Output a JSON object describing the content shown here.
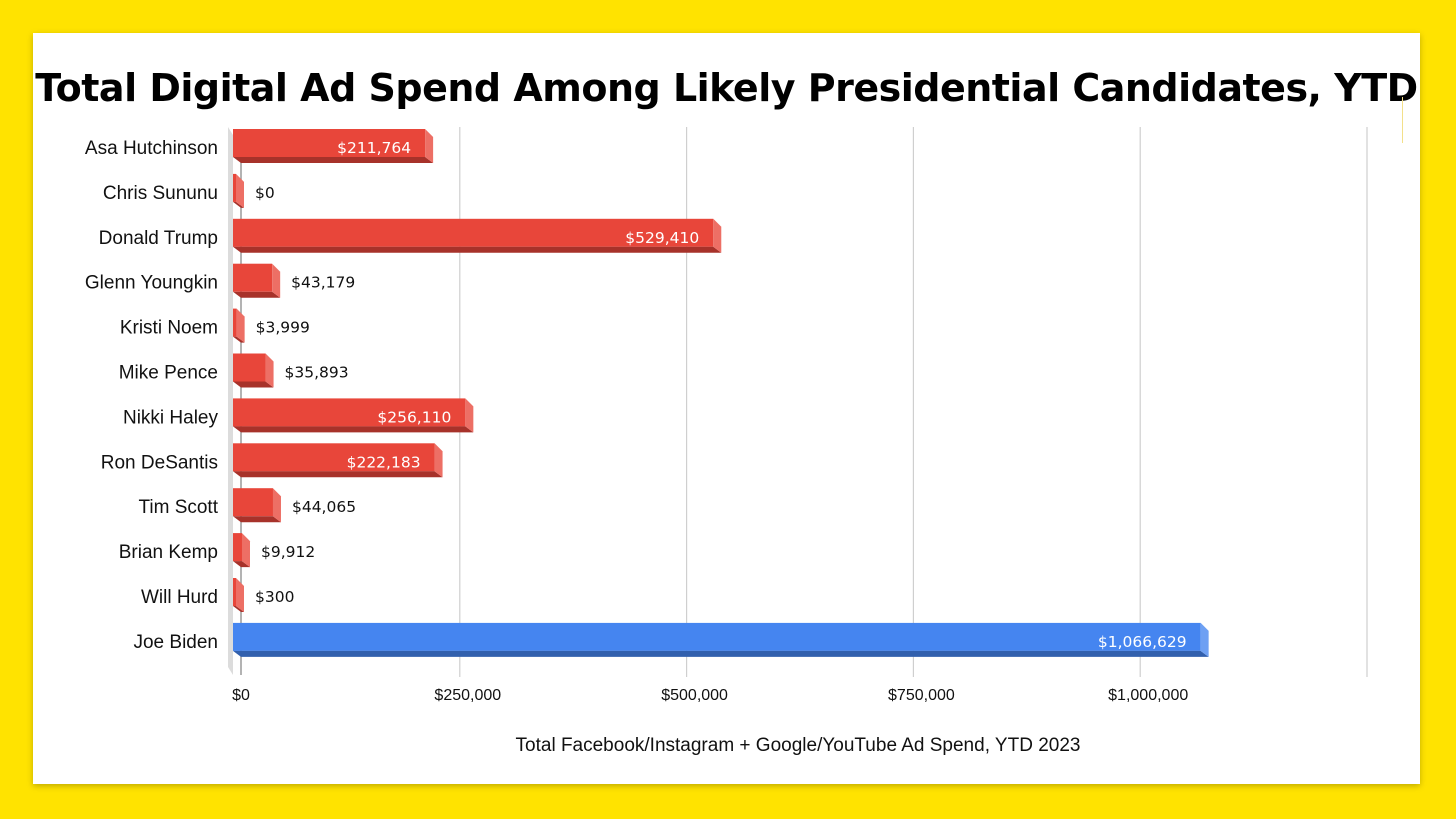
{
  "colors": {
    "background": "#ffe300",
    "card": "#ffffff",
    "republican_bar": "#e8463a",
    "democrat_bar": "#4585f0",
    "gridline": "#cfcfcf"
  },
  "chart_data": {
    "type": "bar",
    "orientation": "horizontal",
    "style": "3d",
    "title": "Total Digital Ad Spend Among Likely Presidential Candidates, YTD",
    "xlabel": "Total Facebook/Instagram + Google/YouTube Ad Spend, YTD 2023",
    "ylabel": "",
    "xlim": [
      0,
      1250000
    ],
    "x_ticks": [
      0,
      250000,
      500000,
      750000,
      1000000
    ],
    "x_tick_labels": [
      "$0",
      "$250,000",
      "$500,000",
      "$750,000",
      "$1,000,000"
    ],
    "grid": true,
    "legend": "none",
    "categories": [
      "Asa Hutchinson",
      "Chris Sununu",
      "Donald Trump",
      "Glenn Youngkin",
      "Kristi Noem",
      "Mike Pence",
      "Nikki Haley",
      "Ron DeSantis",
      "Tim Scott",
      "Brian Kemp",
      "Will Hurd",
      "Joe Biden"
    ],
    "values": [
      211764,
      0,
      529410,
      43179,
      3999,
      35893,
      256110,
      222183,
      44065,
      9912,
      300,
      1066629
    ],
    "value_labels": [
      "$211,764",
      "$0",
      "$529,410",
      "$43,179",
      "$3,999",
      "$35,893",
      "$256,110",
      "$222,183",
      "$44,065",
      "$9,912",
      "$300",
      "$1,066,629"
    ],
    "bar_colors": [
      "#e8463a",
      "#e8463a",
      "#e8463a",
      "#e8463a",
      "#e8463a",
      "#e8463a",
      "#e8463a",
      "#e8463a",
      "#e8463a",
      "#e8463a",
      "#e8463a",
      "#4585f0"
    ]
  }
}
